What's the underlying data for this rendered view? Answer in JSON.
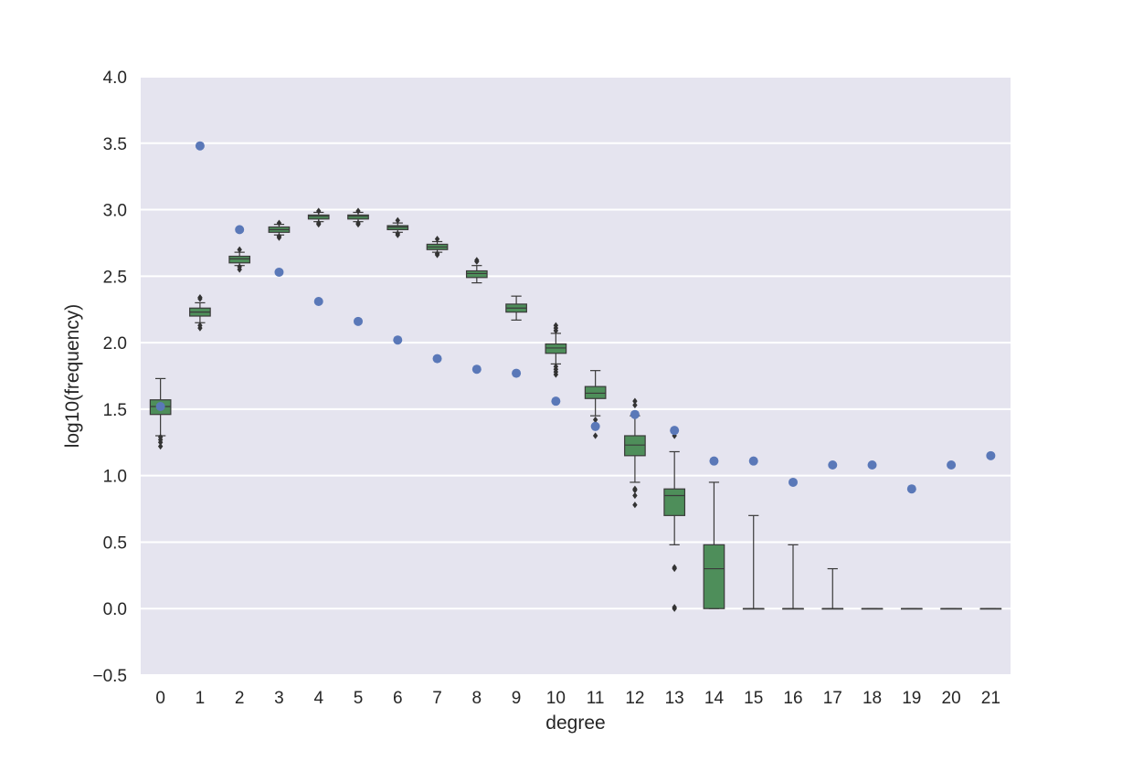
{
  "colors": {
    "plot_background": "#e5e4ef",
    "grid": "#ffffff",
    "box_fill": "#4e8e5a",
    "box_edge": "#3a3a3a",
    "outlier": "#333333",
    "observed_point": "#5a78b8",
    "text": "#262626"
  },
  "chart_data": {
    "type": "box",
    "title": "",
    "xlabel": "degree",
    "ylabel": "log10(frequency)",
    "ylim": [
      -0.5,
      4.0
    ],
    "yticks": [
      "−0.5",
      "0.0",
      "0.5",
      "1.0",
      "1.5",
      "2.0",
      "2.5",
      "3.0",
      "3.5",
      "4.0"
    ],
    "ytick_values": [
      -0.5,
      0.0,
      0.5,
      1.0,
      1.5,
      2.0,
      2.5,
      3.0,
      3.5,
      4.0
    ],
    "grid": "horizontal",
    "legend": "none",
    "categories": [
      "0",
      "1",
      "2",
      "3",
      "4",
      "5",
      "6",
      "7",
      "8",
      "9",
      "10",
      "11",
      "12",
      "13",
      "14",
      "15",
      "16",
      "17",
      "18",
      "19",
      "20",
      "21"
    ],
    "boxes": [
      {
        "q1": 1.46,
        "median": 1.52,
        "q3": 1.57,
        "whislo": 1.3,
        "whishi": 1.73,
        "fliers": [
          1.22,
          1.25,
          1.27,
          1.29
        ]
      },
      {
        "q1": 2.2,
        "median": 2.23,
        "q3": 2.26,
        "whislo": 2.15,
        "whishi": 2.3,
        "fliers": [
          2.11,
          2.13,
          2.33,
          2.34
        ]
      },
      {
        "q1": 2.6,
        "median": 2.63,
        "q3": 2.65,
        "whislo": 2.58,
        "whishi": 2.68,
        "fliers": [
          2.55,
          2.57,
          2.7
        ]
      },
      {
        "q1": 2.83,
        "median": 2.85,
        "q3": 2.87,
        "whislo": 2.81,
        "whishi": 2.89,
        "fliers": [
          2.79,
          2.8,
          2.9
        ]
      },
      {
        "q1": 2.93,
        "median": 2.95,
        "q3": 2.96,
        "whislo": 2.91,
        "whishi": 2.98,
        "fliers": [
          2.89,
          2.9,
          2.99
        ]
      },
      {
        "q1": 2.93,
        "median": 2.95,
        "q3": 2.96,
        "whislo": 2.91,
        "whishi": 2.98,
        "fliers": [
          2.89,
          2.9,
          2.99
        ]
      },
      {
        "q1": 2.85,
        "median": 2.87,
        "q3": 2.88,
        "whislo": 2.83,
        "whishi": 2.9,
        "fliers": [
          2.81,
          2.82,
          2.92
        ]
      },
      {
        "q1": 2.7,
        "median": 2.72,
        "q3": 2.74,
        "whislo": 2.68,
        "whishi": 2.76,
        "fliers": [
          2.66,
          2.67,
          2.78
        ]
      },
      {
        "q1": 2.49,
        "median": 2.52,
        "q3": 2.54,
        "whislo": 2.45,
        "whishi": 2.58,
        "fliers": [
          2.61,
          2.62
        ]
      },
      {
        "q1": 2.23,
        "median": 2.26,
        "q3": 2.29,
        "whislo": 2.17,
        "whishi": 2.35,
        "fliers": []
      },
      {
        "q1": 1.92,
        "median": 1.96,
        "q3": 1.99,
        "whislo": 1.84,
        "whishi": 2.07,
        "fliers": [
          1.76,
          1.78,
          1.8,
          1.82,
          2.09,
          2.11,
          2.13
        ]
      },
      {
        "q1": 1.58,
        "median": 1.62,
        "q3": 1.67,
        "whislo": 1.45,
        "whishi": 1.79,
        "fliers": [
          1.3,
          1.36,
          1.39,
          1.42
        ]
      },
      {
        "q1": 1.15,
        "median": 1.23,
        "q3": 1.3,
        "whislo": 0.95,
        "whishi": 1.45,
        "fliers": [
          0.78,
          0.85,
          0.89,
          0.9,
          1.53,
          1.56
        ]
      },
      {
        "q1": 0.7,
        "median": 0.85,
        "q3": 0.9,
        "whislo": 0.48,
        "whishi": 1.18,
        "fliers": [
          0.0,
          0.01,
          0.3,
          0.31,
          1.3
        ]
      },
      {
        "q1": 0.0,
        "median": 0.3,
        "q3": 0.48,
        "whislo": 0.0,
        "whishi": 0.95,
        "fliers": []
      },
      {
        "q1": 0.0,
        "median": 0.0,
        "q3": 0.0,
        "whislo": 0.0,
        "whishi": 0.7,
        "fliers": []
      },
      {
        "q1": 0.0,
        "median": 0.0,
        "q3": 0.0,
        "whislo": 0.0,
        "whishi": 0.48,
        "fliers": []
      },
      {
        "q1": 0.0,
        "median": 0.0,
        "q3": 0.0,
        "whislo": 0.0,
        "whishi": 0.3,
        "fliers": []
      },
      {
        "q1": 0.0,
        "median": 0.0,
        "q3": 0.0,
        "whislo": 0.0,
        "whishi": 0.0,
        "fliers": []
      },
      {
        "q1": 0.0,
        "median": 0.0,
        "q3": 0.0,
        "whislo": 0.0,
        "whishi": 0.0,
        "fliers": []
      },
      {
        "q1": 0.0,
        "median": 0.0,
        "q3": 0.0,
        "whislo": 0.0,
        "whishi": 0.0,
        "fliers": []
      },
      {
        "q1": 0.0,
        "median": 0.0,
        "q3": 0.0,
        "whislo": 0.0,
        "whishi": 0.0,
        "fliers": []
      }
    ],
    "points": [
      1.52,
      3.48,
      2.85,
      2.53,
      2.31,
      2.16,
      2.02,
      1.88,
      1.8,
      1.77,
      1.56,
      1.37,
      1.46,
      1.34,
      1.11,
      1.11,
      0.95,
      1.08,
      1.08,
      0.9,
      1.08,
      1.15
    ]
  }
}
